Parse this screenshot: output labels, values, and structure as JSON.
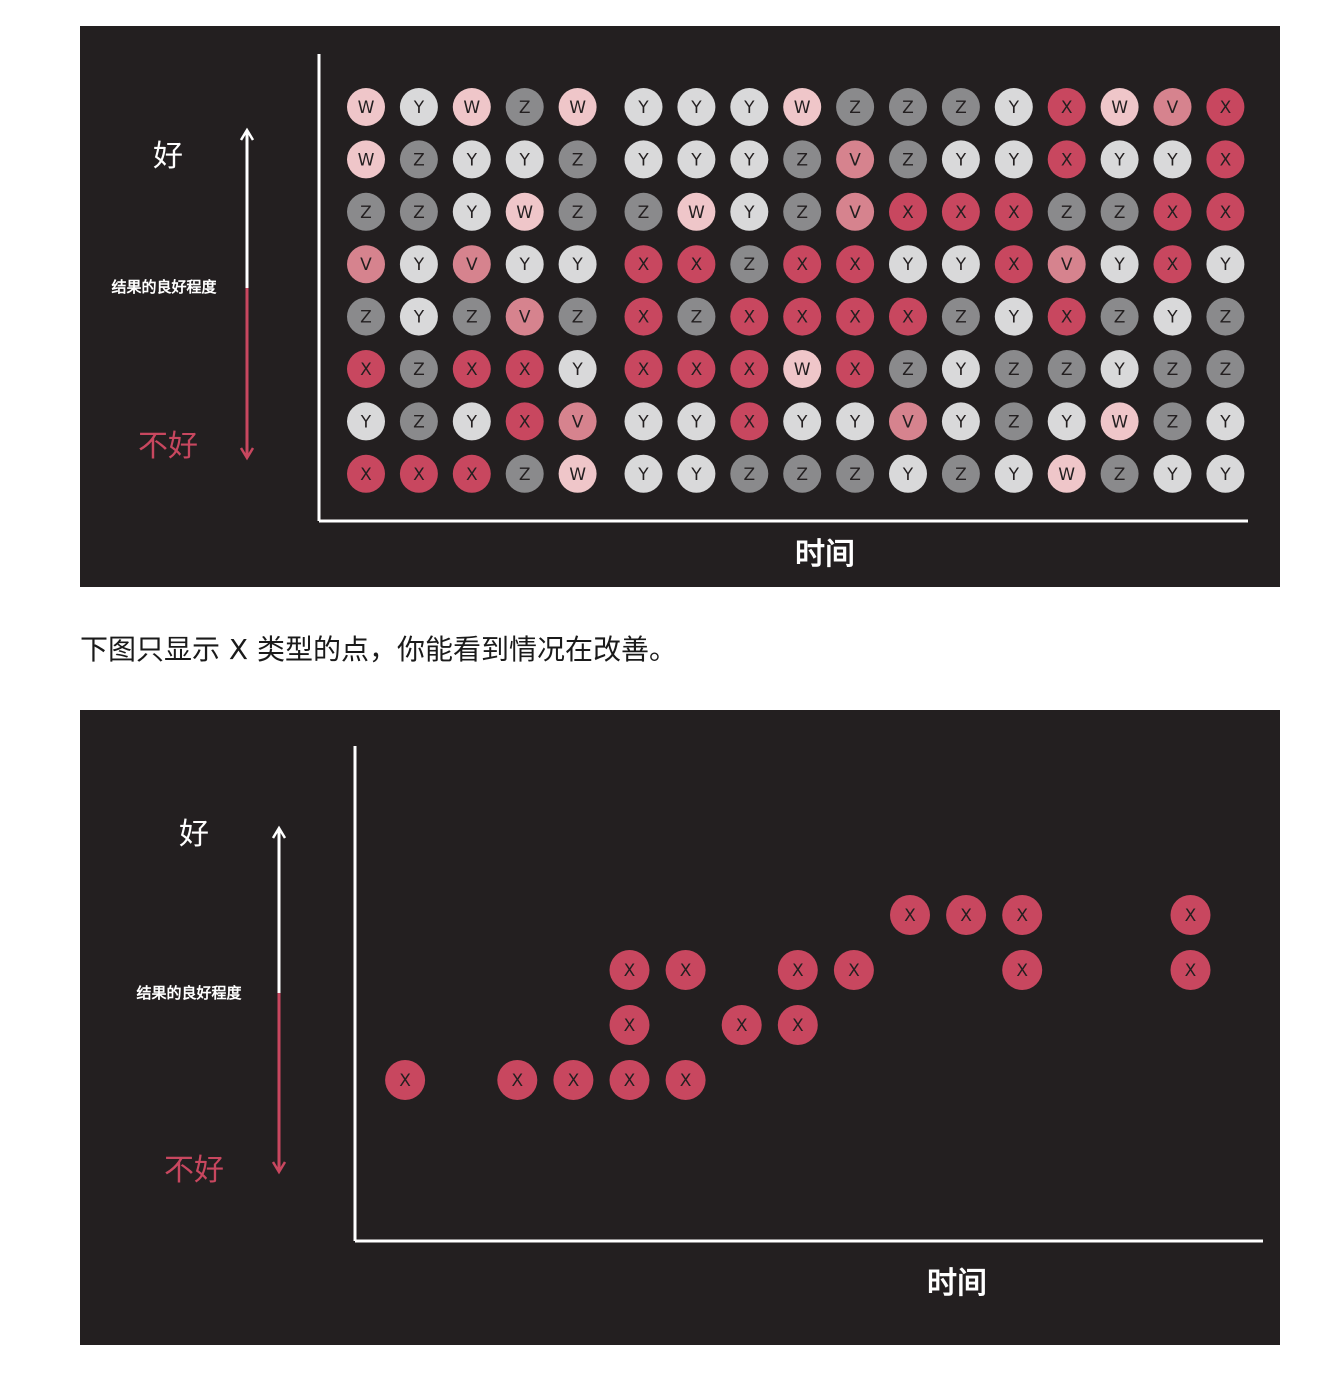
{
  "caption": "下图只显示 X 类型的点，你能看到情况在改善。",
  "colors": {
    "background": "#231f20",
    "X": "#c8475f",
    "V": "#d6838e",
    "W": "#efc6c9",
    "Y": "#d9d9da",
    "Z": "#8a8a8c",
    "axis": "#ffffff"
  },
  "chart_data": [
    {
      "type": "scatter",
      "title": "",
      "xlabel": "时间",
      "ylabel": "结果的良好程度",
      "y_top_label": "好",
      "y_bottom_label": "不好",
      "legend": "none",
      "grid": false,
      "columns": 17,
      "rows": 8,
      "gap_after_column": 5,
      "grid_rows_top_to_bottom": [
        [
          "W",
          "Y",
          "W",
          "Z",
          "W",
          "Y",
          "Y",
          "Y",
          "W",
          "Z",
          "Z",
          "Z",
          "Y",
          "X",
          "W",
          "V",
          "X"
        ],
        [
          "W",
          "Z",
          "Y",
          "Y",
          "Z",
          "Y",
          "Y",
          "Y",
          "Z",
          "V",
          "Z",
          "Y",
          "Y",
          "X",
          "Y",
          "Y",
          "X"
        ],
        [
          "Z",
          "Z",
          "Y",
          "W",
          "Z",
          "Z",
          "W",
          "Y",
          "Z",
          "V",
          "X",
          "X",
          "X",
          "Z",
          "Z",
          "X",
          "X"
        ],
        [
          "V",
          "Y",
          "V",
          "Y",
          "Y",
          "X",
          "X",
          "Z",
          "X",
          "X",
          "Y",
          "Y",
          "X",
          "V",
          "Y",
          "X",
          "Y"
        ],
        [
          "Z",
          "Y",
          "Z",
          "V",
          "Z",
          "X",
          "Z",
          "X",
          "X",
          "X",
          "X",
          "Z",
          "Y",
          "X",
          "Z",
          "Y",
          "Z"
        ],
        [
          "X",
          "Z",
          "X",
          "X",
          "Y",
          "X",
          "X",
          "X",
          "W",
          "X",
          "Z",
          "Y",
          "Z",
          "Z",
          "Y",
          "Z",
          "Z"
        ],
        [
          "Y",
          "Z",
          "Y",
          "X",
          "V",
          "Y",
          "Y",
          "X",
          "Y",
          "Y",
          "V",
          "Y",
          "Z",
          "Y",
          "W",
          "Z",
          "Y"
        ],
        [
          "X",
          "X",
          "X",
          "Z",
          "W",
          "Y",
          "Y",
          "Z",
          "Z",
          "Z",
          "Y",
          "Z",
          "Y",
          "W",
          "Z",
          "Y",
          "Y"
        ]
      ]
    },
    {
      "type": "scatter",
      "title": "",
      "xlabel": "时间",
      "ylabel": "结果的良好程度",
      "y_top_label": "好",
      "y_bottom_label": "不好",
      "legend": "none",
      "grid": false,
      "series": [
        {
          "label": "X",
          "points": [
            {
              "x": 1,
              "y": 1
            },
            {
              "x": 3,
              "y": 1
            },
            {
              "x": 4,
              "y": 1
            },
            {
              "x": 5,
              "y": 1
            },
            {
              "x": 5,
              "y": 2
            },
            {
              "x": 5,
              "y": 3
            },
            {
              "x": 6,
              "y": 1
            },
            {
              "x": 6,
              "y": 3
            },
            {
              "x": 7,
              "y": 2
            },
            {
              "x": 8,
              "y": 2
            },
            {
              "x": 8,
              "y": 3
            },
            {
              "x": 9,
              "y": 3
            },
            {
              "x": 10,
              "y": 4
            },
            {
              "x": 11,
              "y": 4
            },
            {
              "x": 12,
              "y": 3
            },
            {
              "x": 12,
              "y": 4
            },
            {
              "x": 15,
              "y": 3
            },
            {
              "x": 15,
              "y": 4
            }
          ]
        }
      ]
    }
  ]
}
